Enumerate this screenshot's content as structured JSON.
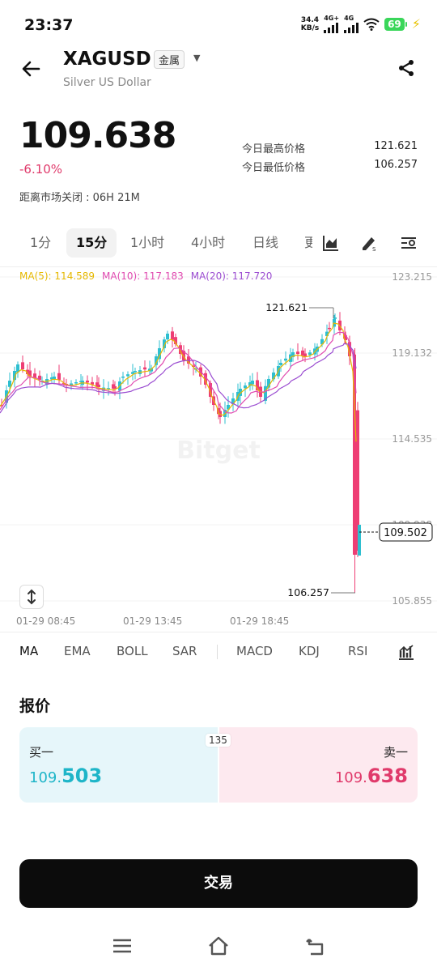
{
  "status_bar": {
    "time": "23:37",
    "net_speed_value": "34.4",
    "net_speed_unit": "KB/s",
    "signal1_label": "4G+",
    "signal2_label": "4G",
    "battery": "69"
  },
  "header": {
    "symbol": "XAGUSD",
    "category_tag": "金属",
    "name": "Silver US Dollar"
  },
  "price": {
    "last": "109.638",
    "change_pct": "-6.10%",
    "market_close": "距离市场关闭 : 06H 21M",
    "high_label": "今日最高价格",
    "high_value": "121.621",
    "low_label": "今日最低价格",
    "low_value": "106.257"
  },
  "timeframes": [
    "1分",
    "15分",
    "1小时",
    "4小时",
    "日线",
    "更"
  ],
  "active_timeframe": 1,
  "ma_legend": {
    "ma5": "MA(5): 114.589",
    "ma10": "MA(10): 117.183",
    "ma20": "MA(20): 117.720"
  },
  "chart_data": {
    "type": "candlestick",
    "y_ticks": [
      "123.215",
      "119.132",
      "114.535",
      "109.938",
      "105.855"
    ],
    "ylim": [
      105.855,
      123.215
    ],
    "x_ticks": [
      "01-29 08:45",
      "01-29 13:45",
      "01-29 18:45"
    ],
    "high_marker": "121.621",
    "low_marker": "106.257",
    "current_price": "109.502",
    "watermark": "Bitget",
    "up_color": "#2ebfd0",
    "down_color": "#ee3e74",
    "ma_colors": {
      "ma5": "#e6b800",
      "ma10": "#e04ab0",
      "ma20": "#9b4dd1"
    }
  },
  "indicators": [
    "MA",
    "EMA",
    "BOLL",
    "SAR",
    "MACD",
    "KDJ",
    "RSI"
  ],
  "quote": {
    "title": "报价",
    "bid_label": "买一",
    "bid_int": "109.",
    "bid_dec": "503",
    "ask_label": "卖一",
    "ask_int": "109.",
    "ask_dec": "638",
    "spread": "135"
  },
  "trade_button": "交易"
}
